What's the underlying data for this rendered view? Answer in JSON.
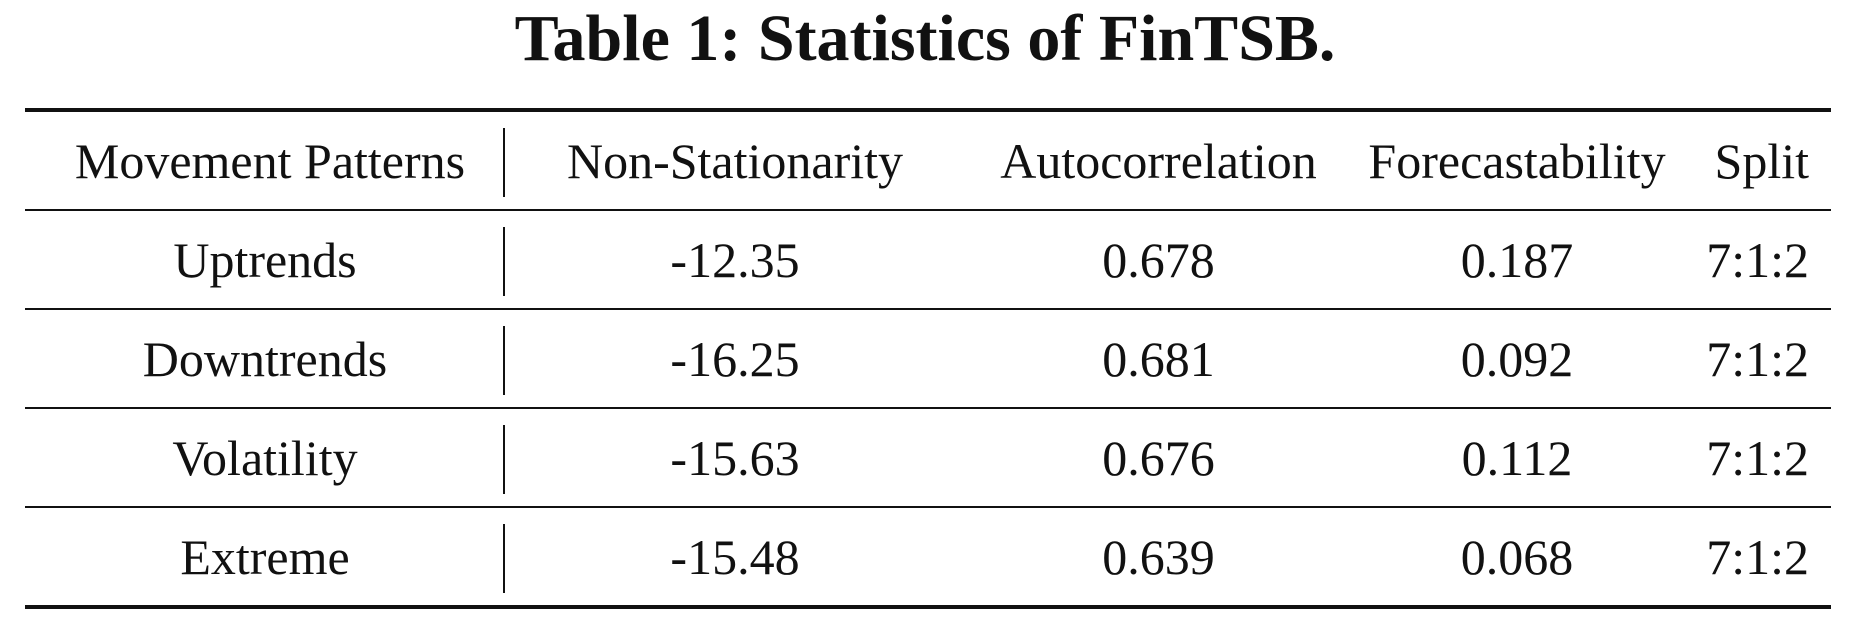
{
  "caption": "Table 1: Statistics of FinTSB.",
  "table": {
    "headers": [
      "Movement Patterns",
      "Non-Stationarity",
      "Autocorrelation",
      "Forecastability",
      "Split"
    ],
    "rows": [
      [
        "Uptrends",
        "-12.35",
        "0.678",
        "0.187",
        "7:1:2"
      ],
      [
        "Downtrends",
        "-16.25",
        "0.681",
        "0.092",
        "7:1:2"
      ],
      [
        "Volatility",
        "-15.63",
        "0.676",
        "0.112",
        "7:1:2"
      ],
      [
        "Extreme",
        "-15.48",
        "0.639",
        "0.068",
        "7:1:2"
      ]
    ]
  }
}
